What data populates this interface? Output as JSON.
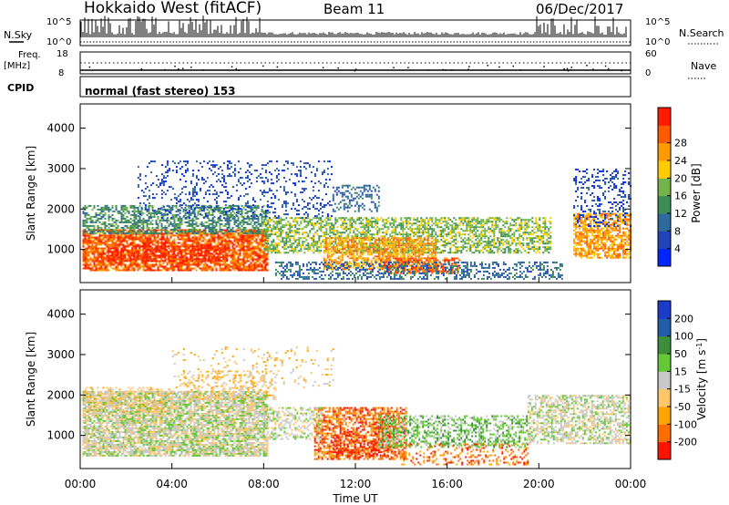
{
  "header": {
    "station": "Hokkaido West (fitACF)",
    "beam": "Beam 11",
    "date": "06/Dec/2017"
  },
  "top_panels": {
    "nsky_label": "N.Sky",
    "nsky_ticks": [
      "10^5",
      "10^0"
    ],
    "nsky_right_ticks": [
      "10^5",
      "10^0"
    ],
    "nsearch_label": "N.Search",
    "freq_label_1": "Freq.",
    "freq_label_2": "[MHz]",
    "freq_ticks": [
      "18",
      "8"
    ],
    "nave_ticks": [
      "60",
      "0"
    ],
    "nave_label": "Nave",
    "cpid_label": "CPID",
    "cpid_text": "normal (fast stereo) 153"
  },
  "colors": {
    "power": [
      "#0026ff",
      "#2144ba",
      "#2e6a9e",
      "#3d8c55",
      "#72b34a",
      "#ffcc00",
      "#ff9a00",
      "#ff5a00",
      "#ff1a00"
    ],
    "velocity": [
      "#ff1300",
      "#ff6d00",
      "#ffa400",
      "#ffc66a",
      "#c8c8c8",
      "#64c837",
      "#3c8e3b",
      "#215ea8",
      "#1a3cc8"
    ]
  },
  "chart_data": [
    {
      "type": "heatmap",
      "name": "power",
      "ylabel": "Slant Range [km]",
      "xlabel": "",
      "x_range": [
        0,
        24
      ],
      "ylim": [
        180,
        4600
      ],
      "y_ticks": [
        "1000",
        "2000",
        "3000",
        "4000"
      ],
      "colorbar_label": "Power [dB]",
      "colorbar_ticks": [
        "4",
        "8",
        "12",
        "16",
        "20",
        "24",
        "28"
      ],
      "colorbar_range": [
        0,
        32
      ],
      "grid": false,
      "legend_position": "right",
      "bands": [
        {
          "t0": 0.1,
          "t1": 8.2,
          "r0": 500,
          "r1": 1500,
          "level": 7,
          "density": 0.78
        },
        {
          "t0": 0.1,
          "t1": 8.2,
          "r0": 1400,
          "r1": 2100,
          "level": 3,
          "density": 0.55
        },
        {
          "t0": 1.2,
          "t1": 6.5,
          "r0": 700,
          "r1": 1100,
          "level": 8,
          "density": 0.55
        },
        {
          "t0": 8.0,
          "t1": 20.5,
          "r0": 900,
          "r1": 1800,
          "level": 4,
          "density": 0.55
        },
        {
          "t0": 10.6,
          "t1": 15.5,
          "r0": 500,
          "r1": 1300,
          "level": 6,
          "density": 0.6
        },
        {
          "t0": 13.0,
          "t1": 16.5,
          "r0": 400,
          "r1": 800,
          "level": 7,
          "density": 0.55
        },
        {
          "t0": 8.5,
          "t1": 21.0,
          "r0": 250,
          "r1": 700,
          "level": 2,
          "density": 0.35
        },
        {
          "t0": 2.5,
          "t1": 11.0,
          "r0": 1800,
          "r1": 3200,
          "level": 1,
          "density": 0.18
        },
        {
          "t0": 11.0,
          "t1": 13.0,
          "r0": 1950,
          "r1": 2600,
          "level": 2,
          "density": 0.35
        },
        {
          "t0": 21.5,
          "t1": 24.0,
          "r0": 800,
          "r1": 1900,
          "level": 6,
          "density": 0.65
        },
        {
          "t0": 21.5,
          "t1": 24.0,
          "r0": 1600,
          "r1": 3000,
          "level": 1,
          "density": 0.22
        }
      ]
    },
    {
      "type": "heatmap",
      "name": "velocity",
      "ylabel": "Slant Range [km]",
      "xlabel": "Time UT",
      "x_range": [
        0,
        24
      ],
      "x_ticks": [
        "00:00",
        "04:00",
        "08:00",
        "12:00",
        "16:00",
        "20:00",
        "00:00"
      ],
      "ylim": [
        180,
        4600
      ],
      "y_ticks": [
        "1000",
        "2000",
        "3000",
        "4000"
      ],
      "colorbar_label": "Velocity [m s^-1]",
      "colorbar_ticks": [
        "-200",
        "-100",
        "-50",
        "-15",
        "15",
        "50",
        "100",
        "200"
      ],
      "colorbar_range": [
        -250,
        250
      ],
      "grid": false,
      "legend_position": "right",
      "bands": [
        {
          "t0": 0.1,
          "t1": 8.2,
          "r0": 500,
          "r1": 2100,
          "level": 4,
          "density": 0.78
        },
        {
          "t0": 0.1,
          "t1": 4.0,
          "r0": 1600,
          "r1": 2200,
          "level": 3,
          "density": 0.3
        },
        {
          "t0": 4.5,
          "t1": 8.5,
          "r0": 1900,
          "r1": 2600,
          "level": 3,
          "density": 0.3
        },
        {
          "t0": 10.2,
          "t1": 14.2,
          "r0": 400,
          "r1": 1700,
          "level": 1,
          "density": 0.6
        },
        {
          "t0": 11.0,
          "t1": 13.5,
          "r0": 500,
          "r1": 1100,
          "level": 0,
          "density": 0.35
        },
        {
          "t0": 13.0,
          "t1": 19.5,
          "r0": 700,
          "r1": 1500,
          "level": 5,
          "density": 0.45
        },
        {
          "t0": 14.0,
          "t1": 19.5,
          "r0": 300,
          "r1": 800,
          "level": 1,
          "density": 0.28
        },
        {
          "t0": 8.0,
          "t1": 10.5,
          "r0": 900,
          "r1": 1700,
          "level": 4,
          "density": 0.4
        },
        {
          "t0": 19.5,
          "t1": 24.0,
          "r0": 800,
          "r1": 2000,
          "level": 4,
          "density": 0.55
        },
        {
          "t0": 4.0,
          "t1": 11.0,
          "r0": 2200,
          "r1": 3200,
          "level": 3,
          "density": 0.08
        }
      ]
    }
  ]
}
